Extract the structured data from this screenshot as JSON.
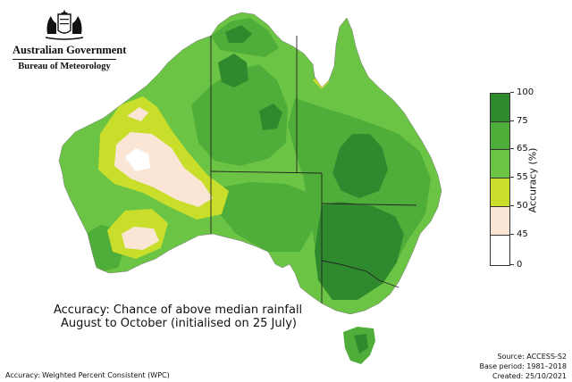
{
  "header": {
    "government": "Australian Government",
    "agency": "Bureau of Meteorology"
  },
  "legend": {
    "title": "Accuracy (%)",
    "ticks": [
      "100",
      "75",
      "65",
      "55",
      "50",
      "45",
      "0"
    ],
    "bands": [
      {
        "range": "75-100",
        "color": "#2f8a2e"
      },
      {
        "range": "65-75",
        "color": "#4fae3a"
      },
      {
        "range": "55-65",
        "color": "#6cc445"
      },
      {
        "range": "50-55",
        "color": "#c8de2a"
      },
      {
        "range": "45-50",
        "color": "#fbe6d6"
      },
      {
        "range": "0-45",
        "color": "#ffffff"
      }
    ]
  },
  "title": {
    "line1": "Accuracy: Chance of above median rainfall",
    "line2": "August to October (initialised on 25 July)"
  },
  "meta": {
    "source": "Source: ACCESS-S2",
    "base_period": "Base period: 1981–2018",
    "created": "Created: 25/10/2021"
  },
  "footnote": "Accuracy: Weighted Percent Consistent (WPC)"
}
